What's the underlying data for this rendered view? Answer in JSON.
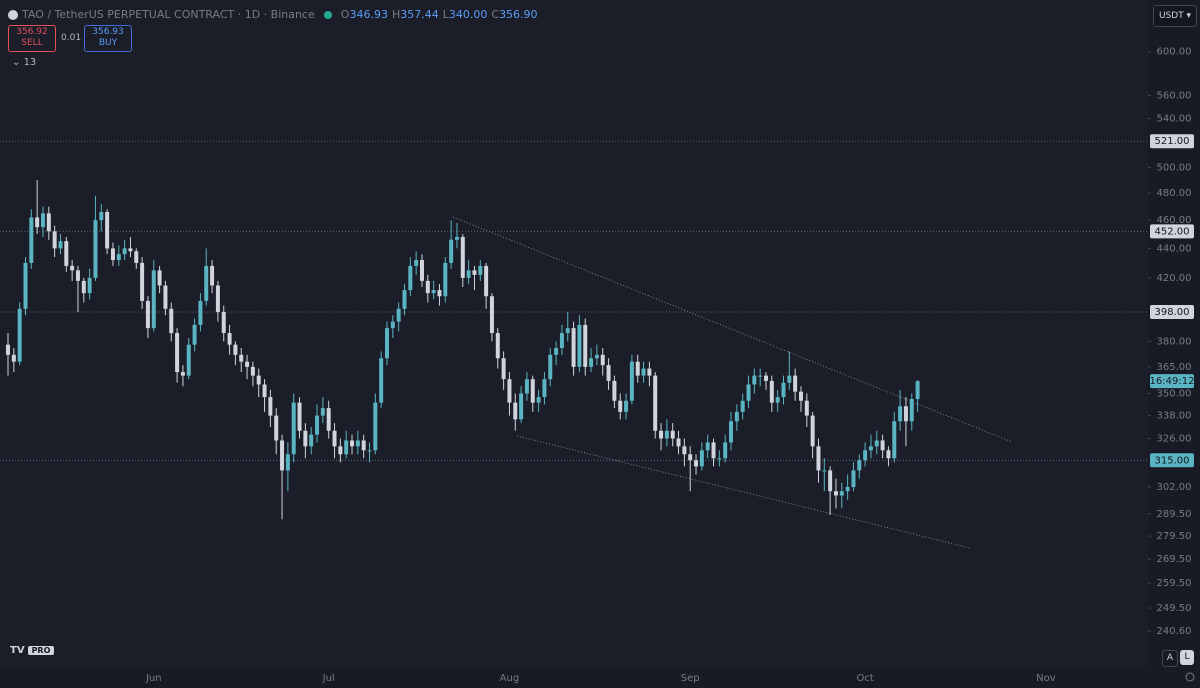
{
  "chart_data": {
    "type": "candlestick",
    "title": "TAO / TetherUS PERPETUAL CONTRACT · 1D · Binance",
    "legend_keys": [
      "O",
      "H",
      "L",
      "C"
    ],
    "legend_value_labels": [
      "346.93",
      "357.44",
      "340.00",
      "356.90"
    ],
    "currency": "USDT",
    "countdown": "16:49:12",
    "log_scale": true,
    "grid": false,
    "up_color": "#5ab4c2",
    "down_color": "#d1d4dc",
    "ylim": [
      227,
      651
    ],
    "yticks": [
      {
        "value": 600,
        "label": "600.00"
      },
      {
        "value": 560,
        "label": "560.00"
      },
      {
        "value": 540,
        "label": "540.00"
      },
      {
        "value": 500,
        "label": "500.00"
      },
      {
        "value": 480,
        "label": "480.00"
      },
      {
        "value": 460,
        "label": "460.00"
      },
      {
        "value": 440,
        "label": "440.00"
      },
      {
        "value": 420,
        "label": "420.00"
      },
      {
        "value": 380,
        "label": "380.00"
      },
      {
        "value": 365,
        "label": "365.00"
      },
      {
        "value": 350,
        "label": "350.00"
      },
      {
        "value": 338,
        "label": "338.00"
      },
      {
        "value": 326,
        "label": "326.00"
      },
      {
        "value": 302,
        "label": "302.00"
      },
      {
        "value": 289.5,
        "label": "289.50"
      },
      {
        "value": 279.5,
        "label": "279.50"
      },
      {
        "value": 269.5,
        "label": "269.50"
      },
      {
        "value": 259.5,
        "label": "259.50"
      },
      {
        "value": 249.5,
        "label": "249.50"
      },
      {
        "value": 240.6,
        "label": "240.60"
      }
    ],
    "hlines": [
      {
        "value": 521,
        "label": "521.00"
      },
      {
        "value": 452,
        "label": "452.00"
      },
      {
        "value": 398,
        "label": "398.00"
      },
      {
        "value": 315,
        "label": "315.00"
      }
    ],
    "categories": [
      null,
      null,
      null,
      null,
      null,
      null,
      null,
      null,
      null,
      null,
      null,
      null,
      null,
      null,
      null,
      null,
      null,
      null,
      null,
      null,
      null,
      null,
      null,
      null,
      null,
      "Jun",
      null,
      null,
      null,
      null,
      null,
      null,
      null,
      null,
      null,
      null,
      null,
      null,
      null,
      null,
      null,
      null,
      null,
      null,
      null,
      null,
      null,
      null,
      null,
      null,
      null,
      null,
      null,
      null,
      null,
      "Jul",
      null,
      null,
      null,
      null,
      null,
      null,
      null,
      null,
      null,
      null,
      null,
      null,
      null,
      null,
      null,
      null,
      null,
      null,
      null,
      null,
      null,
      null,
      null,
      null,
      null,
      null,
      null,
      null,
      null,
      null,
      "Aug",
      null,
      null,
      null,
      null,
      null,
      null,
      null,
      null,
      null,
      null,
      null,
      null,
      null,
      null,
      null,
      null,
      null,
      null,
      null,
      null,
      null,
      null,
      null,
      null,
      null,
      null,
      null,
      null,
      null,
      null,
      "Sep",
      null,
      null,
      null,
      null,
      null,
      null,
      null,
      null,
      null,
      null,
      null,
      null,
      null,
      null,
      null,
      null,
      null,
      null,
      null,
      null,
      null,
      null,
      null,
      null,
      null,
      null,
      null,
      null,
      null,
      "Oct",
      null,
      null,
      null,
      null,
      null,
      null,
      null,
      null,
      null,
      null,
      null,
      null,
      null,
      null,
      null,
      null,
      null,
      null,
      null,
      null,
      null,
      null,
      null,
      null,
      null,
      null,
      null,
      null,
      null,
      null,
      "Nov",
      null,
      null,
      null,
      null,
      null,
      null,
      null,
      null,
      null,
      null,
      null,
      null,
      null,
      null,
      null,
      null,
      null
    ],
    "ohlc": [
      [
        378,
        385,
        360,
        372
      ],
      [
        372,
        376,
        362,
        368
      ],
      [
        368,
        404,
        366,
        400
      ],
      [
        400,
        434,
        396,
        430
      ],
      [
        430,
        468,
        426,
        462
      ],
      [
        462,
        490,
        450,
        455
      ],
      [
        455,
        470,
        448,
        465
      ],
      [
        465,
        470,
        446,
        452
      ],
      [
        452,
        456,
        434,
        440
      ],
      [
        440,
        450,
        436,
        445
      ],
      [
        445,
        448,
        424,
        428
      ],
      [
        428,
        432,
        418,
        425
      ],
      [
        425,
        428,
        398,
        418
      ],
      [
        418,
        420,
        404,
        410
      ],
      [
        410,
        426,
        406,
        420
      ],
      [
        420,
        478,
        418,
        460
      ],
      [
        460,
        472,
        452,
        466
      ],
      [
        466,
        468,
        436,
        440
      ],
      [
        440,
        444,
        428,
        432
      ],
      [
        432,
        442,
        428,
        436
      ],
      [
        436,
        446,
        432,
        440
      ],
      [
        440,
        448,
        434,
        438
      ],
      [
        438,
        440,
        426,
        430
      ],
      [
        430,
        434,
        400,
        405
      ],
      [
        405,
        408,
        382,
        388
      ],
      [
        388,
        432,
        386,
        425
      ],
      [
        425,
        428,
        410,
        415
      ],
      [
        415,
        418,
        396,
        400
      ],
      [
        400,
        404,
        380,
        385
      ],
      [
        385,
        388,
        356,
        362
      ],
      [
        362,
        366,
        354,
        360
      ],
      [
        360,
        382,
        358,
        378
      ],
      [
        378,
        394,
        374,
        390
      ],
      [
        390,
        410,
        386,
        405
      ],
      [
        405,
        440,
        402,
        428
      ],
      [
        428,
        432,
        410,
        415
      ],
      [
        415,
        418,
        392,
        398
      ],
      [
        398,
        402,
        380,
        385
      ],
      [
        385,
        390,
        372,
        378
      ],
      [
        378,
        380,
        366,
        372
      ],
      [
        372,
        376,
        362,
        368
      ],
      [
        368,
        372,
        358,
        365
      ],
      [
        365,
        368,
        354,
        360
      ],
      [
        360,
        364,
        348,
        355
      ],
      [
        355,
        358,
        340,
        348
      ],
      [
        348,
        352,
        332,
        338
      ],
      [
        338,
        342,
        318,
        325
      ],
      [
        325,
        328,
        287,
        310
      ],
      [
        310,
        324,
        300,
        318
      ],
      [
        318,
        350,
        314,
        345
      ],
      [
        345,
        348,
        326,
        330
      ],
      [
        330,
        334,
        316,
        322
      ],
      [
        322,
        332,
        318,
        328
      ],
      [
        328,
        344,
        324,
        338
      ],
      [
        338,
        348,
        334,
        342
      ],
      [
        342,
        346,
        326,
        330
      ],
      [
        330,
        334,
        316,
        322
      ],
      [
        322,
        326,
        314,
        318
      ],
      [
        318,
        330,
        316,
        325
      ],
      [
        325,
        328,
        318,
        322
      ],
      [
        322,
        330,
        318,
        325
      ],
      [
        325,
        328,
        316,
        320
      ],
      [
        320,
        324,
        314,
        320
      ],
      [
        320,
        350,
        318,
        345
      ],
      [
        345,
        374,
        342,
        370
      ],
      [
        370,
        392,
        366,
        388
      ],
      [
        388,
        396,
        382,
        392
      ],
      [
        392,
        404,
        386,
        400
      ],
      [
        400,
        416,
        396,
        412
      ],
      [
        412,
        434,
        408,
        428
      ],
      [
        428,
        438,
        422,
        432
      ],
      [
        432,
        436,
        414,
        418
      ],
      [
        418,
        422,
        404,
        410
      ],
      [
        410,
        418,
        406,
        412
      ],
      [
        412,
        416,
        402,
        408
      ],
      [
        408,
        434,
        404,
        430
      ],
      [
        430,
        460,
        426,
        446
      ],
      [
        446,
        458,
        440,
        448
      ],
      [
        448,
        450,
        414,
        420
      ],
      [
        420,
        432,
        416,
        425
      ],
      [
        425,
        428,
        412,
        422
      ],
      [
        422,
        432,
        418,
        428
      ],
      [
        428,
        430,
        400,
        408
      ],
      [
        408,
        410,
        380,
        385
      ],
      [
        385,
        388,
        364,
        370
      ],
      [
        370,
        374,
        352,
        358
      ],
      [
        358,
        362,
        338,
        345
      ],
      [
        345,
        350,
        330,
        336
      ],
      [
        336,
        354,
        334,
        350
      ],
      [
        350,
        362,
        346,
        358
      ],
      [
        358,
        360,
        340,
        345
      ],
      [
        345,
        352,
        340,
        348
      ],
      [
        348,
        362,
        344,
        358
      ],
      [
        358,
        376,
        354,
        372
      ],
      [
        372,
        380,
        366,
        376
      ],
      [
        376,
        390,
        372,
        385
      ],
      [
        385,
        398,
        380,
        388
      ],
      [
        388,
        392,
        360,
        365
      ],
      [
        365,
        396,
        362,
        390
      ],
      [
        390,
        394,
        360,
        365
      ],
      [
        365,
        376,
        362,
        370
      ],
      [
        370,
        378,
        366,
        372
      ],
      [
        372,
        376,
        360,
        366
      ],
      [
        366,
        370,
        352,
        357
      ],
      [
        357,
        360,
        342,
        346
      ],
      [
        346,
        350,
        336,
        340
      ],
      [
        340,
        350,
        336,
        346
      ],
      [
        346,
        372,
        344,
        368
      ],
      [
        368,
        372,
        356,
        360
      ],
      [
        360,
        368,
        356,
        364
      ],
      [
        364,
        368,
        354,
        360
      ],
      [
        360,
        362,
        326,
        330
      ],
      [
        330,
        334,
        320,
        326
      ],
      [
        326,
        336,
        322,
        330
      ],
      [
        330,
        334,
        322,
        326
      ],
      [
        326,
        330,
        318,
        322
      ],
      [
        322,
        326,
        312,
        318
      ],
      [
        318,
        322,
        300,
        315
      ],
      [
        315,
        318,
        308,
        312
      ],
      [
        312,
        324,
        310,
        320
      ],
      [
        320,
        328,
        316,
        324
      ],
      [
        324,
        326,
        312,
        316
      ],
      [
        316,
        320,
        312,
        316
      ],
      [
        316,
        328,
        314,
        324
      ],
      [
        324,
        340,
        320,
        335
      ],
      [
        335,
        344,
        330,
        340
      ],
      [
        340,
        350,
        336,
        346
      ],
      [
        346,
        360,
        342,
        355
      ],
      [
        355,
        364,
        350,
        360
      ],
      [
        360,
        364,
        354,
        360
      ],
      [
        360,
        362,
        352,
        357
      ],
      [
        357,
        360,
        340,
        345
      ],
      [
        345,
        352,
        340,
        348
      ],
      [
        348,
        360,
        344,
        356
      ],
      [
        356,
        374,
        352,
        360
      ],
      [
        360,
        364,
        346,
        351
      ],
      [
        351,
        354,
        340,
        346
      ],
      [
        346,
        350,
        332,
        338
      ],
      [
        338,
        340,
        316,
        322
      ],
      [
        322,
        326,
        304,
        310
      ],
      [
        310,
        316,
        300,
        310
      ],
      [
        310,
        312,
        289,
        300
      ],
      [
        300,
        306,
        292,
        298
      ],
      [
        298,
        304,
        292,
        300
      ],
      [
        300,
        308,
        296,
        302
      ],
      [
        302,
        314,
        300,
        310
      ],
      [
        310,
        318,
        306,
        315
      ],
      [
        315,
        324,
        312,
        320
      ],
      [
        320,
        328,
        316,
        322
      ],
      [
        322,
        330,
        318,
        325
      ],
      [
        325,
        328,
        316,
        320
      ],
      [
        320,
        322,
        312,
        316
      ],
      [
        316,
        340,
        314,
        335
      ],
      [
        335,
        352,
        330,
        343
      ],
      [
        343,
        348,
        322,
        335
      ],
      [
        335,
        350,
        330,
        346.93
      ],
      [
        346.93,
        357.44,
        340.0,
        356.9
      ],
      null,
      null,
      null,
      null,
      null,
      null,
      null,
      null,
      null,
      null,
      null,
      null,
      null,
      null,
      null,
      null,
      null,
      null,
      null,
      null,
      null,
      null,
      null,
      null,
      null,
      null,
      null,
      null,
      null,
      null,
      null,
      null,
      null,
      null,
      null,
      null,
      null,
      null,
      null
    ]
  },
  "trade_panel": {
    "sell_price": "356.92",
    "sell": "SELL",
    "spread": "0.01",
    "buy_price": "356.93",
    "buy": "BUY"
  },
  "indicators_count": "13",
  "footer": {
    "logo_badge": "PRO",
    "auto": "A",
    "log": "L"
  }
}
